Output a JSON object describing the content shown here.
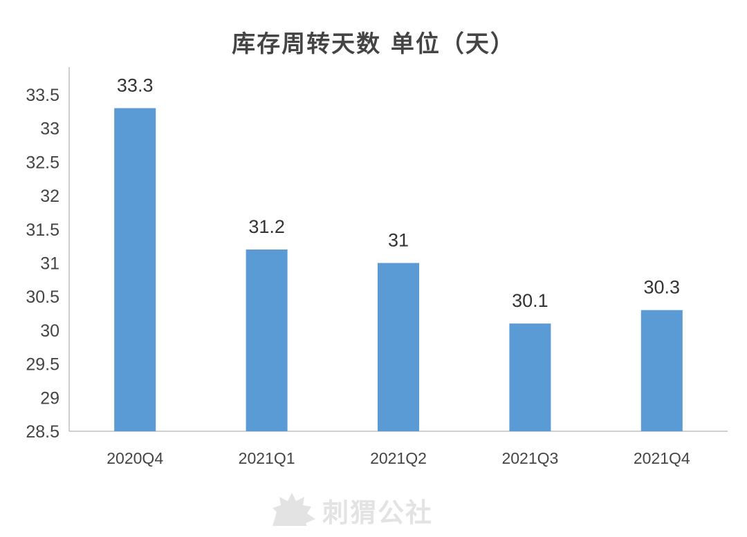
{
  "chart_data": {
    "type": "bar",
    "title": "库存周转天数  单位（天）",
    "categories": [
      "2020Q4",
      "2021Q1",
      "2021Q2",
      "2021Q3",
      "2021Q4"
    ],
    "values": [
      33.3,
      31.2,
      31,
      30.1,
      30.3
    ],
    "data_labels": [
      "33.3",
      "31.2",
      "31",
      "30.1",
      "30.3"
    ],
    "yticks": [
      "28.5",
      "29",
      "29.5",
      "30",
      "30.5",
      "31",
      "31.5",
      "32",
      "32.5",
      "33",
      "33.5"
    ],
    "ylim": [
      28.5,
      33.5
    ],
    "grid": false,
    "legend": "none",
    "bar_color": "#5b9bd5"
  },
  "watermark": {
    "text": "刺猬公社",
    "icon": "hedgehog-logo-icon"
  }
}
